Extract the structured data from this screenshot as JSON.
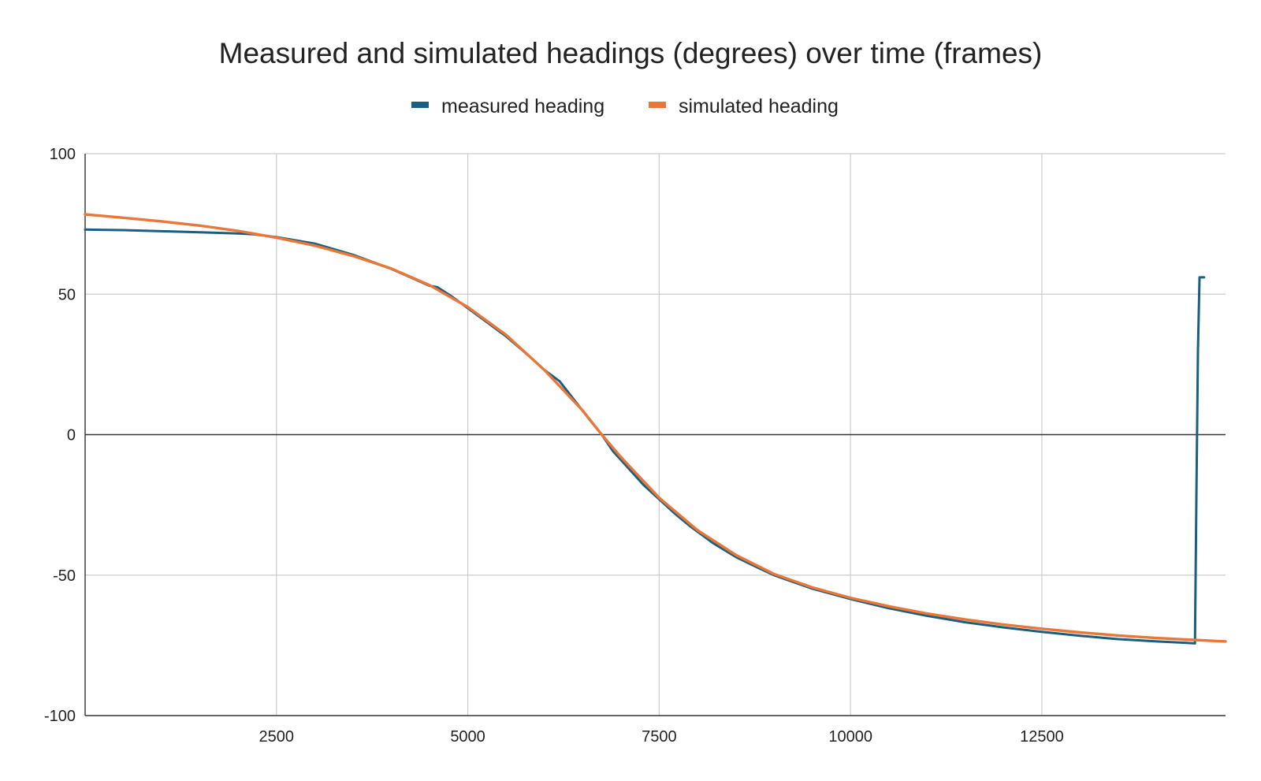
{
  "chart_data": {
    "type": "line",
    "title": "Measured and simulated headings (degrees) over time (frames)",
    "xlabel": "",
    "ylabel": "",
    "xlim": [
      0,
      14900
    ],
    "ylim": [
      -100,
      100
    ],
    "x_ticks": [
      2500,
      5000,
      7500,
      10000,
      12500
    ],
    "y_ticks": [
      100,
      50,
      0,
      -50,
      -100
    ],
    "x_tick_labels": [
      "2500",
      "5000",
      "7500",
      "10000",
      "12500"
    ],
    "y_tick_labels": [
      "100",
      "50",
      "0",
      "-50",
      "-100"
    ],
    "grid": true,
    "legend_position": "top",
    "series": [
      {
        "name": "measured heading",
        "color": "#1a5e80",
        "points": [
          [
            0,
            73
          ],
          [
            500,
            72.8
          ],
          [
            1000,
            72.4
          ],
          [
            1500,
            72
          ],
          [
            2000,
            71.6
          ],
          [
            2200,
            71.3
          ],
          [
            2500,
            70.3
          ],
          [
            3000,
            68
          ],
          [
            3500,
            64
          ],
          [
            4000,
            59
          ],
          [
            4500,
            53
          ],
          [
            4600,
            52.5
          ],
          [
            4800,
            49
          ],
          [
            5000,
            45
          ],
          [
            5200,
            41
          ],
          [
            5500,
            35
          ],
          [
            5800,
            28
          ],
          [
            6000,
            23
          ],
          [
            6200,
            19
          ],
          [
            6400,
            12
          ],
          [
            6600,
            5
          ],
          [
            6750,
            0
          ],
          [
            6900,
            -6
          ],
          [
            7100,
            -12
          ],
          [
            7300,
            -18
          ],
          [
            7500,
            -23
          ],
          [
            7700,
            -28
          ],
          [
            7900,
            -32.5
          ],
          [
            8200,
            -38.5
          ],
          [
            8500,
            -43.5
          ],
          [
            8800,
            -47.5
          ],
          [
            9000,
            -50
          ],
          [
            9500,
            -54.8
          ],
          [
            10000,
            -58.5
          ],
          [
            10500,
            -61.8
          ],
          [
            11000,
            -64.5
          ],
          [
            11500,
            -66.8
          ],
          [
            12000,
            -68.6
          ],
          [
            12500,
            -70.2
          ],
          [
            13000,
            -71.6
          ],
          [
            13500,
            -72.8
          ],
          [
            14000,
            -73.6
          ],
          [
            14300,
            -74
          ],
          [
            14500,
            -74.3
          ],
          [
            14520,
            -20
          ],
          [
            14540,
            30
          ],
          [
            14560,
            56
          ],
          [
            14620,
            56
          ]
        ]
      },
      {
        "name": "simulated heading",
        "color": "#e8773a",
        "points": [
          [
            0,
            78.4
          ],
          [
            500,
            77.2
          ],
          [
            1000,
            75.9
          ],
          [
            1500,
            74.4
          ],
          [
            2000,
            72.5
          ],
          [
            2500,
            70.1
          ],
          [
            3000,
            67.3
          ],
          [
            3500,
            63.6
          ],
          [
            4000,
            59.1
          ],
          [
            4500,
            53.2
          ],
          [
            5000,
            45.4
          ],
          [
            5500,
            35.5
          ],
          [
            6000,
            23
          ],
          [
            6500,
            8.6
          ],
          [
            6750,
            0
          ],
          [
            7000,
            -8
          ],
          [
            7500,
            -22.5
          ],
          [
            8000,
            -34
          ],
          [
            8500,
            -42.8
          ],
          [
            9000,
            -49.6
          ],
          [
            9500,
            -54.4
          ],
          [
            10000,
            -58.1
          ],
          [
            10500,
            -61.1
          ],
          [
            11000,
            -63.7
          ],
          [
            11500,
            -65.8
          ],
          [
            12000,
            -67.6
          ],
          [
            12500,
            -69.1
          ],
          [
            13000,
            -70.4
          ],
          [
            13500,
            -71.5
          ],
          [
            14000,
            -72.4
          ],
          [
            14500,
            -73.1
          ],
          [
            14900,
            -73.6
          ]
        ]
      }
    ]
  }
}
